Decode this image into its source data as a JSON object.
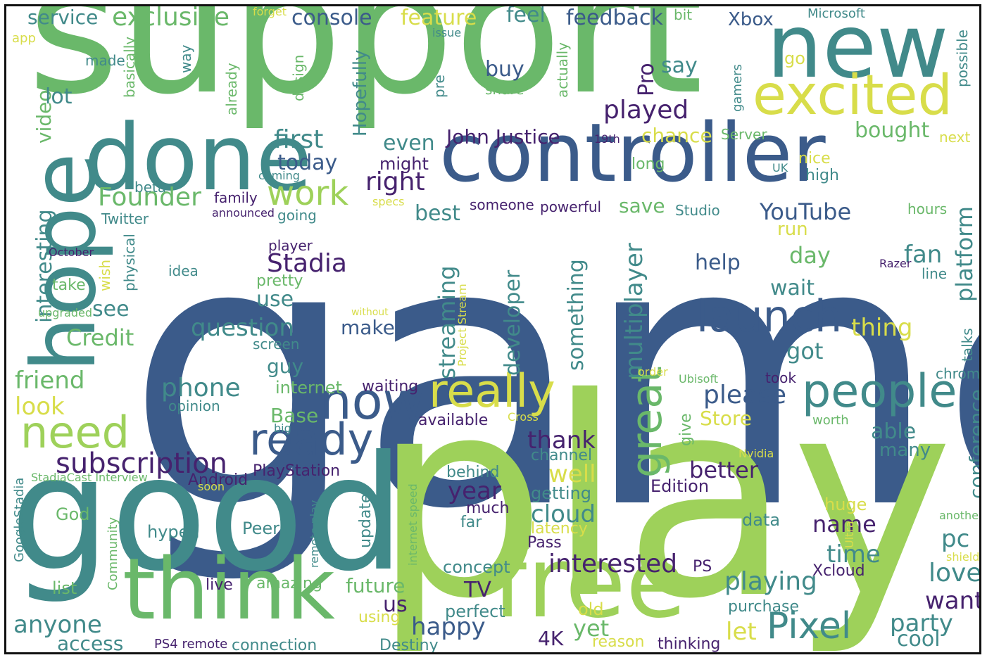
{
  "palette": {
    "dark_blue": "#3b5b8a",
    "purple": "#46226e",
    "teal": "#418a8a",
    "teal_dark": "#2e6e7e",
    "green": "#6ab86a",
    "lime": "#9ed15a",
    "yellow": "#d8dd4a",
    "light_yellow": "#e8e46a"
  },
  "words": [
    "games",
    "play",
    "support",
    "good",
    "controller",
    "hope",
    "new",
    "free",
    "done",
    "think",
    "excited",
    "now",
    "people",
    "really",
    "launch",
    "ready",
    "need",
    "great",
    "Pixel",
    "work",
    "subscription",
    "played",
    "first",
    "Founder",
    "Stadia",
    "interested",
    "playing",
    "multiplayer",
    "streaming",
    "question",
    "John Justice",
    "YouTube",
    "right",
    "phone",
    "anyone",
    "exclusive",
    "console",
    "feedback",
    "feature",
    "feel",
    "service",
    "Xbox",
    "Microsoft",
    "platform",
    "conference",
    "cloud",
    "developer",
    "something",
    "happy",
    "party",
    "Pro",
    "say",
    "buy",
    "today",
    "even",
    "bought",
    "chance",
    "Server",
    "best",
    "save",
    "run",
    "day",
    "wait",
    "help",
    "fan",
    "got",
    "thing",
    "friend",
    "look",
    "Credit",
    "interesting",
    "video",
    "lot",
    "Hopefully",
    "make",
    "see",
    "use",
    "guy",
    "please",
    "thank",
    "well",
    "year",
    "better",
    "name",
    "time",
    "pc",
    "love",
    "want",
    "cool",
    "let",
    "yet",
    "4K",
    "TV",
    "us",
    "future",
    "access",
    "Base",
    "Store",
    "able",
    "many",
    "internet",
    "waiting",
    "Edition",
    "getting",
    "latency",
    "Pass",
    "data",
    "huge",
    "Xcloud",
    "purchase",
    "old",
    "perfect",
    "concept",
    "much",
    "far",
    "behind",
    "available",
    "channel",
    "PlayStation",
    "Android",
    "hyped",
    "Peer",
    "God",
    "list",
    "live",
    "amazing",
    "connection",
    "Destiny",
    "reason",
    "thinking",
    "PS4 remote",
    "using",
    "update",
    "Community",
    "GoogleStadia",
    "StadiaCast Interview",
    "soon",
    "remote play",
    "internet speed",
    "opinion",
    "family",
    "announced",
    "going",
    "Twitter",
    "beta",
    "October",
    "idea",
    "take",
    "wish",
    "physical",
    "upgraded",
    "pretty",
    "player",
    "screen",
    "without",
    "Project Stream",
    "someone",
    "powerful",
    "Studio",
    "specs",
    "might",
    "coming",
    "19th",
    "long",
    "high",
    "nice",
    "UK",
    "hours",
    "line",
    "Razer",
    "talks",
    "chrome",
    "took",
    "order",
    "Ubisoft",
    "worth",
    "Cross",
    "Nvidia",
    "Ultra",
    "another",
    "shield",
    "big",
    "PS",
    "give",
    "app",
    "made",
    "basically",
    "way",
    "already",
    "design",
    "share",
    "actually",
    "pre",
    "issue",
    "forget",
    "bit",
    "go",
    "gamers",
    "possible",
    "next"
  ]
}
